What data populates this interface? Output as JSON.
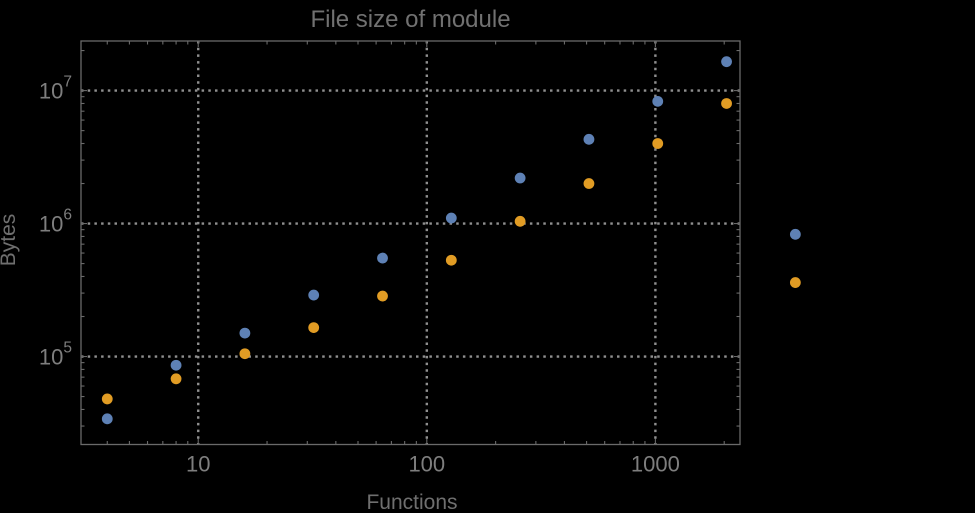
{
  "window": {
    "background": "#000000"
  },
  "chart_data": {
    "type": "scatter",
    "title": "File size of module",
    "xlabel": "Functions",
    "ylabel": "Bytes",
    "x_scale": "log10",
    "y_scale": "log10",
    "xlim": [
      3.07,
      2345
    ],
    "ylim": [
      21800,
      23600000
    ],
    "grid": "dotted lines at decades, both axes",
    "legend": "none",
    "frame": "ticks on all four sides, pointing inward",
    "x": [
      4,
      8,
      16,
      32,
      64,
      128,
      256,
      512,
      1024,
      2048,
      4096
    ],
    "series": [
      {
        "name": "series-1-blue",
        "color": "#5E81B5",
        "values": [
          34000,
          86000,
          150000,
          290000,
          550000,
          1100000,
          2200000,
          4300000,
          8300000,
          16500000,
          830000
        ]
      },
      {
        "name": "series-2-orange",
        "color": "#E19C24",
        "values": [
          48000,
          68000,
          105000,
          165000,
          285000,
          530000,
          1040000,
          2000000,
          4000000,
          8000000,
          360000
        ]
      }
    ],
    "x_ticks": [
      {
        "value": 10,
        "label": "10"
      },
      {
        "value": 100,
        "label": "100"
      },
      {
        "value": 1000,
        "label": "1000"
      }
    ],
    "y_ticks": [
      {
        "value": 100000,
        "base": "10",
        "exp": "5"
      },
      {
        "value": 1000000,
        "base": "10",
        "exp": "6"
      },
      {
        "value": 10000000,
        "base": "10",
        "exp": "7"
      }
    ]
  },
  "style": {
    "background": "#000000",
    "frame_color": "#6a6a6a",
    "grid_color": "#8f8f8f",
    "title_color": "#717171",
    "tick_label_color": "#7e7e7e",
    "axis_label_color": "#6f6f6f",
    "point_radius": 5.4
  }
}
